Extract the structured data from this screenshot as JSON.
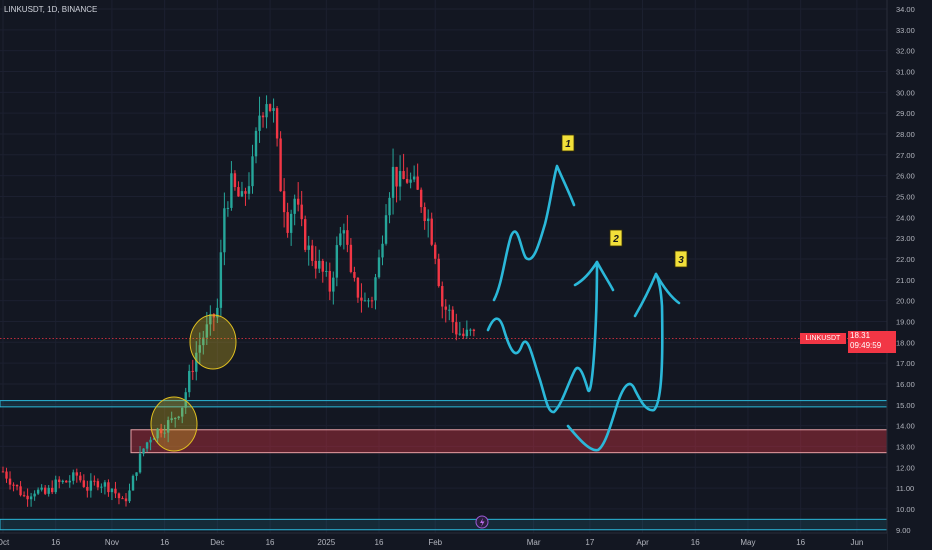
{
  "header": {
    "title": "LINKUSDT, 1D, BINANCE"
  },
  "price_tag": {
    "symbol": "LINKUSDT",
    "price": "18.31",
    "countdown": "09:49:59"
  },
  "colors": {
    "background": "#131722",
    "up": "#26a69a",
    "down": "#f23645",
    "drawing": "#2bb8d9",
    "zone_red": "#f23645",
    "zone_teal": "#2bb8d9",
    "highlight": "#e0c020",
    "label_bg": "#f2e03a"
  },
  "chart_data": {
    "type": "candlestick",
    "symbol": "LINKUSDT",
    "timeframe": "1D",
    "exchange": "BINANCE",
    "last_price": 18.31,
    "y_axis": {
      "range": [
        8.8,
        34.5
      ],
      "ticks": [
        "9.00",
        "10.00",
        "11.00",
        "12.00",
        "13.00",
        "14.00",
        "15.00",
        "16.00",
        "17.00",
        "18.00",
        "19.00",
        "20.00",
        "21.00",
        "22.00",
        "23.00",
        "24.00",
        "25.00",
        "26.00",
        "27.00",
        "28.00",
        "29.00",
        "30.00",
        "31.00",
        "32.00",
        "33.00",
        "34.00"
      ]
    },
    "x_axis": {
      "ticks": [
        {
          "label": "Oct",
          "date": "2024-10-01"
        },
        {
          "label": "16",
          "date": "2024-10-16"
        },
        {
          "label": "Nov",
          "date": "2024-11-01"
        },
        {
          "label": "16",
          "date": "2024-11-16"
        },
        {
          "label": "Dec",
          "date": "2024-12-01"
        },
        {
          "label": "16",
          "date": "2024-12-16"
        },
        {
          "label": "2025",
          "date": "2025-01-01"
        },
        {
          "label": "16",
          "date": "2025-01-16"
        },
        {
          "label": "Feb",
          "date": "2025-02-01"
        },
        {
          "label": "Mar",
          "date": "2025-03-01"
        },
        {
          "label": "17",
          "date": "2025-03-17"
        },
        {
          "label": "Apr",
          "date": "2025-04-01"
        },
        {
          "label": "16",
          "date": "2025-04-16"
        },
        {
          "label": "May",
          "date": "2025-05-01"
        },
        {
          "label": "16",
          "date": "2025-05-16"
        },
        {
          "label": "Jun",
          "date": "2025-06-01"
        }
      ]
    },
    "price_path": [
      [
        "2024-10-01",
        11.8
      ],
      [
        "2024-10-04",
        11.2
      ],
      [
        "2024-10-07",
        10.6
      ],
      [
        "2024-10-10",
        10.9
      ],
      [
        "2024-10-13",
        10.7
      ],
      [
        "2024-10-16",
        11.2
      ],
      [
        "2024-10-19",
        11.3
      ],
      [
        "2024-10-22",
        11.6
      ],
      [
        "2024-10-25",
        11.0
      ],
      [
        "2024-10-28",
        11.3
      ],
      [
        "2024-11-01",
        11.0
      ],
      [
        "2024-11-04",
        10.3
      ],
      [
        "2024-11-06",
        10.8
      ],
      [
        "2024-11-08",
        12.0
      ],
      [
        "2024-11-10",
        12.9
      ],
      [
        "2024-11-12",
        13.5
      ],
      [
        "2024-11-15",
        13.9
      ],
      [
        "2024-11-18",
        14.2
      ],
      [
        "2024-11-21",
        15.0
      ],
      [
        "2024-11-23",
        16.3
      ],
      [
        "2024-11-25",
        17.5
      ],
      [
        "2024-11-27",
        18.3
      ],
      [
        "2024-11-29",
        18.9
      ],
      [
        "2024-12-01",
        19.6
      ],
      [
        "2024-12-03",
        24.5
      ],
      [
        "2024-12-05",
        25.5
      ],
      [
        "2024-12-08",
        24.7
      ],
      [
        "2024-12-11",
        26.4
      ],
      [
        "2024-12-13",
        29.0
      ],
      [
        "2024-12-15",
        29.8
      ],
      [
        "2024-12-17",
        28.9
      ],
      [
        "2024-12-19",
        25.6
      ],
      [
        "2024-12-21",
        23.8
      ],
      [
        "2024-12-23",
        24.9
      ],
      [
        "2024-12-25",
        23.4
      ],
      [
        "2024-12-27",
        22.4
      ],
      [
        "2024-12-29",
        21.9
      ],
      [
        "2024-12-31",
        21.3
      ],
      [
        "2025-01-02",
        20.6
      ],
      [
        "2025-01-04",
        22.4
      ],
      [
        "2025-01-06",
        23.8
      ],
      [
        "2025-01-08",
        21.0
      ],
      [
        "2025-01-10",
        20.4
      ],
      [
        "2025-01-12",
        19.9
      ],
      [
        "2025-01-14",
        20.2
      ],
      [
        "2025-01-16",
        21.9
      ],
      [
        "2025-01-18",
        24.7
      ],
      [
        "2025-01-20",
        26.2
      ],
      [
        "2025-01-22",
        25.6
      ],
      [
        "2025-01-24",
        25.9
      ],
      [
        "2025-01-26",
        25.4
      ],
      [
        "2025-01-28",
        24.8
      ],
      [
        "2025-01-30",
        23.9
      ],
      [
        "2025-02-01",
        22.4
      ],
      [
        "2025-02-03",
        19.8
      ],
      [
        "2025-02-05",
        19.4
      ],
      [
        "2025-02-07",
        18.6
      ],
      [
        "2025-02-09",
        18.3
      ],
      [
        "2025-02-11",
        18.4
      ],
      [
        "2025-02-12",
        18.31
      ]
    ],
    "zones": [
      {
        "name": "resistance-support",
        "from": 14.9,
        "to": 15.2,
        "color": "#2bb8d9"
      },
      {
        "name": "demand",
        "from": 12.7,
        "to": 13.8,
        "color": "#f23645"
      },
      {
        "name": "bottom-band",
        "from": 9.0,
        "to": 9.5,
        "color": "#2bb8d9"
      }
    ],
    "scenario_labels": [
      "1",
      "2",
      "3"
    ]
  }
}
